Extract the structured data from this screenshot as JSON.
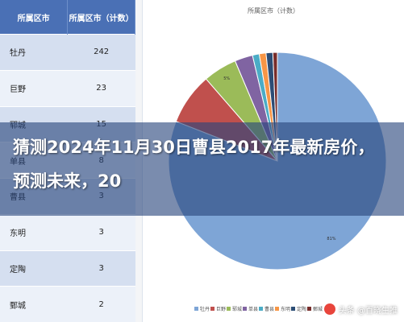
{
  "table": {
    "headers": [
      "所属区市",
      "所属区市（计数）"
    ],
    "rows": [
      [
        "牡丹",
        "242"
      ],
      [
        "巨野",
        "23"
      ],
      [
        "郓城",
        "15"
      ],
      [
        "单县",
        "8"
      ],
      [
        "曹县",
        "3"
      ],
      [
        "东明",
        "3"
      ],
      [
        "定陶",
        "3"
      ],
      [
        "鄄城",
        "2"
      ]
    ]
  },
  "chart_data": {
    "type": "pie",
    "title": "所属区市（计数）",
    "slices": [
      {
        "name": "牡丹",
        "value": 242,
        "color": "#7ea5d6"
      },
      {
        "name": "巨野",
        "value": 23,
        "color": "#c0504d"
      },
      {
        "name": "郓城",
        "value": 15,
        "color": "#9bbb59"
      },
      {
        "name": "单县",
        "value": 8,
        "color": "#8064a2"
      },
      {
        "name": "曹县",
        "value": 3,
        "color": "#4bacc6"
      },
      {
        "name": "东明",
        "value": 3,
        "color": "#f79646"
      },
      {
        "name": "定陶",
        "value": 3,
        "color": "#2c4d75"
      },
      {
        "name": "鄄城",
        "value": 2,
        "color": "#772c2a"
      }
    ],
    "slice_labels": {
      "牡丹": "81%",
      "郓城": "5%"
    },
    "legend_position": "bottom"
  },
  "headline": "猜测2024年11月30日曹县2017年最新房价，预测未来，20",
  "watermark": "头条 @百晓生推"
}
